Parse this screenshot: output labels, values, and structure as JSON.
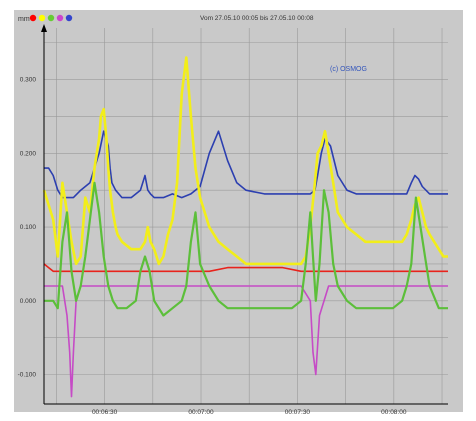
{
  "header": {
    "unit_label": "mm",
    "range_label": "Vom 27.05.10 00:05 bis 27.05.10 00:08",
    "dot_colors": [
      "#ff0000",
      "#ffff00",
      "#66cc33",
      "#cc44cc",
      "#3344cc"
    ],
    "dot_icons": [
      "red-dot-icon",
      "yellow-dot-icon",
      "green-dot-icon",
      "magenta-dot-icon",
      "blue-dot-icon"
    ]
  },
  "chart_data": {
    "type": "line",
    "watermark": "(c) OSMOG",
    "grid": true,
    "x_ticks": [
      "00:06:30",
      "00:07:00",
      "00:07:30",
      "00:08:00"
    ],
    "y_ticks": [
      "0.300",
      "0.200",
      "0.100",
      "0.000",
      "-0.100"
    ],
    "xlim": [
      "00:06:15",
      "00:08:20"
    ],
    "ylim": [
      -0.14,
      0.37
    ],
    "series": [
      {
        "color": "#2c3fb0",
        "x": [
          0,
          5,
          10,
          15,
          20,
          25,
          32,
          40,
          50,
          60,
          65,
          70,
          72,
          74,
          78,
          85,
          95,
          105,
          110,
          113,
          116,
          120,
          130,
          140,
          150,
          160,
          170,
          180,
          190,
          200,
          210,
          220,
          240,
          260,
          285,
          290,
          295,
          298,
          302,
          306,
          312,
          320,
          330,
          340,
          350,
          360,
          370,
          380,
          395,
          400,
          404,
          408,
          412,
          420,
          430,
          440
        ],
        "y": [
          0.18,
          0.18,
          0.17,
          0.15,
          0.14,
          0.14,
          0.14,
          0.15,
          0.16,
          0.2,
          0.23,
          0.21,
          0.18,
          0.16,
          0.15,
          0.14,
          0.14,
          0.15,
          0.17,
          0.15,
          0.145,
          0.14,
          0.14,
          0.145,
          0.14,
          0.145,
          0.155,
          0.2,
          0.23,
          0.19,
          0.16,
          0.15,
          0.145,
          0.145,
          0.145,
          0.145,
          0.15,
          0.17,
          0.2,
          0.22,
          0.21,
          0.17,
          0.15,
          0.145,
          0.145,
          0.145,
          0.145,
          0.145,
          0.145,
          0.16,
          0.17,
          0.165,
          0.155,
          0.145,
          0.145,
          0.145
        ]
      },
      {
        "color": "#f2ee1a",
        "x": [
          0,
          5,
          10,
          15,
          20,
          25,
          30,
          35,
          40,
          45,
          50,
          55,
          60,
          62,
          65,
          68,
          70,
          72,
          75,
          78,
          80,
          85,
          95,
          105,
          110,
          113,
          116,
          120,
          125,
          130,
          135,
          140,
          145,
          150,
          155,
          160,
          165,
          170,
          175,
          180,
          185,
          190,
          200,
          210,
          220,
          230,
          240,
          250,
          260,
          270,
          280,
          285,
          290,
          295,
          298,
          302,
          306,
          310,
          315,
          320,
          330,
          340,
          350,
          360,
          370,
          380,
          390,
          395,
          400,
          404,
          408,
          412,
          416,
          420,
          425,
          430,
          435,
          440
        ],
        "y": [
          0.15,
          0.13,
          0.11,
          0.06,
          0.16,
          0.12,
          0.08,
          0.05,
          0.06,
          0.14,
          0.12,
          0.18,
          0.22,
          0.25,
          0.26,
          0.22,
          0.18,
          0.15,
          0.12,
          0.1,
          0.09,
          0.08,
          0.07,
          0.07,
          0.08,
          0.1,
          0.08,
          0.07,
          0.05,
          0.06,
          0.09,
          0.11,
          0.16,
          0.28,
          0.33,
          0.25,
          0.18,
          0.14,
          0.12,
          0.1,
          0.09,
          0.08,
          0.07,
          0.06,
          0.05,
          0.05,
          0.05,
          0.05,
          0.05,
          0.05,
          0.05,
          0.06,
          0.1,
          0.16,
          0.2,
          0.21,
          0.23,
          0.2,
          0.16,
          0.12,
          0.1,
          0.09,
          0.08,
          0.08,
          0.08,
          0.08,
          0.08,
          0.09,
          0.11,
          0.13,
          0.14,
          0.12,
          0.1,
          0.09,
          0.08,
          0.07,
          0.06,
          0.06
        ]
      },
      {
        "color": "#e8231c",
        "x": [
          0,
          5,
          10,
          20,
          40,
          60,
          80,
          100,
          120,
          140,
          160,
          180,
          200,
          220,
          240,
          260,
          280,
          300,
          320,
          340,
          360,
          380,
          400,
          420,
          440
        ],
        "y": [
          0.05,
          0.045,
          0.04,
          0.04,
          0.04,
          0.04,
          0.04,
          0.04,
          0.04,
          0.04,
          0.04,
          0.04,
          0.045,
          0.045,
          0.045,
          0.045,
          0.04,
          0.04,
          0.04,
          0.04,
          0.04,
          0.04,
          0.04,
          0.04,
          0.04
        ]
      },
      {
        "color": "#c64bc6",
        "x": [
          0,
          10,
          20,
          25,
          28,
          30,
          32,
          35,
          40,
          60,
          80,
          100,
          120,
          140,
          160,
          180,
          200,
          220,
          240,
          260,
          280,
          290,
          293,
          296,
          300,
          310,
          320,
          340,
          360,
          380,
          400,
          420,
          440
        ],
        "y": [
          0.02,
          0.02,
          0.02,
          -0.02,
          -0.07,
          -0.13,
          -0.07,
          0.0,
          0.02,
          0.02,
          0.02,
          0.02,
          0.02,
          0.02,
          0.02,
          0.02,
          0.02,
          0.02,
          0.02,
          0.02,
          0.02,
          0.0,
          -0.07,
          -0.1,
          -0.02,
          0.02,
          0.02,
          0.02,
          0.02,
          0.02,
          0.02,
          0.02,
          0.02
        ]
      },
      {
        "color": "#5cbf3a",
        "x": [
          0,
          5,
          10,
          15,
          20,
          25,
          30,
          35,
          40,
          45,
          50,
          55,
          60,
          65,
          70,
          75,
          80,
          90,
          100,
          105,
          110,
          115,
          120,
          130,
          140,
          150,
          155,
          160,
          165,
          170,
          180,
          190,
          200,
          210,
          220,
          230,
          240,
          250,
          260,
          270,
          280,
          285,
          290,
          293,
          296,
          300,
          305,
          310,
          315,
          320,
          330,
          340,
          350,
          360,
          370,
          380,
          390,
          395,
          400,
          405,
          410,
          415,
          420,
          430,
          440
        ],
        "y": [
          0.0,
          0.0,
          0.0,
          -0.01,
          0.08,
          0.12,
          0.04,
          0.0,
          0.02,
          0.06,
          0.11,
          0.16,
          0.12,
          0.06,
          0.02,
          0.0,
          -0.01,
          -0.01,
          0.0,
          0.04,
          0.06,
          0.04,
          0.0,
          -0.02,
          -0.01,
          0.0,
          0.02,
          0.08,
          0.12,
          0.05,
          0.02,
          0.0,
          -0.01,
          -0.01,
          -0.01,
          -0.01,
          -0.01,
          -0.01,
          -0.01,
          -0.01,
          0.0,
          0.05,
          0.12,
          0.06,
          0.0,
          0.05,
          0.15,
          0.12,
          0.05,
          0.02,
          0.0,
          -0.01,
          -0.01,
          -0.01,
          -0.01,
          -0.01,
          0.0,
          0.02,
          0.05,
          0.14,
          0.1,
          0.06,
          0.02,
          -0.01,
          -0.01
        ]
      }
    ]
  }
}
